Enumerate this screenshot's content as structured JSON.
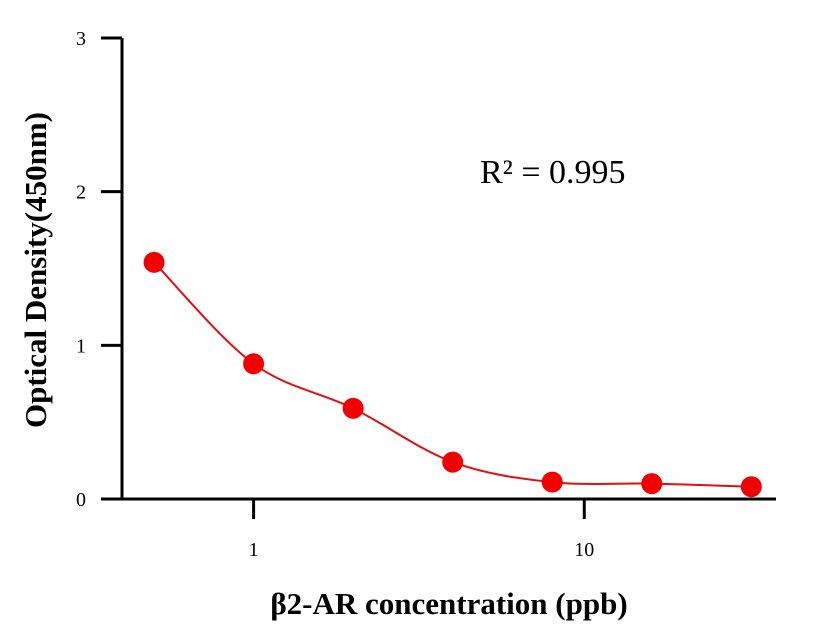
{
  "chart_data": {
    "type": "scatter",
    "title": "",
    "xlabel": "β2-AR concentration (ppb)",
    "ylabel": "Optical Density(450nm)",
    "xscale": "log",
    "xlim": [
      0.4,
      38
    ],
    "ylim": [
      0,
      3
    ],
    "x_ticks": [
      1,
      10
    ],
    "x_tick_labels": [
      "1",
      "10"
    ],
    "y_ticks": [
      0,
      1,
      2,
      3
    ],
    "y_tick_labels": [
      "0",
      "1",
      "2",
      "3"
    ],
    "grid": false,
    "annotation": "R² = 0.995",
    "series": [
      {
        "x": [
          0.5,
          1,
          2,
          4,
          8,
          16,
          32
        ],
        "y": [
          1.54,
          0.88,
          0.59,
          0.24,
          0.11,
          0.1,
          0.08
        ],
        "marker_color": "#f20000",
        "fit_line_color": "#e01010"
      }
    ]
  }
}
